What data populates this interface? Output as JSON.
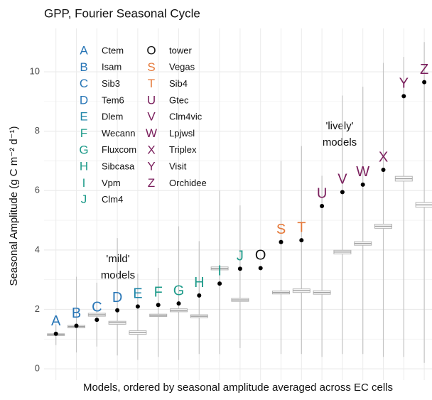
{
  "chart_data": {
    "type": "box",
    "title": "GPP, Fourier Seasonal Cycle",
    "x_label": "Models, ordered by seasonal amplitude averaged across EC cells",
    "y_label": "Seasonal Amplitude (g C m⁻² d⁻¹)",
    "ylim": [
      -0.38,
      11.46
    ],
    "yticks": [
      0,
      2,
      4,
      6,
      8,
      10
    ],
    "grid": true,
    "categories": [
      "A",
      "B",
      "C",
      "D",
      "E",
      "F",
      "G",
      "H",
      "I",
      "J",
      "O",
      "S",
      "T",
      "U",
      "V",
      "W",
      "X",
      "Y",
      "Z"
    ],
    "model_names": [
      "Ctem",
      "Isam",
      "Sib3",
      "Tem6",
      "Dlem",
      "Wecann",
      "Fluxcom",
      "Sibcasa",
      "Vpm",
      "Clm4",
      "tower",
      "Vegas",
      "Sib4",
      "Gtec",
      "Clm4vic",
      "Lpjwsl",
      "Triplex",
      "Visit",
      "Orchidee"
    ],
    "colors": [
      "#2775b6",
      "#2775b6",
      "#2775b6",
      "#2775b6",
      "#1f86a8",
      "#1e9b8a",
      "#1e9b8a",
      "#1e9b8a",
      "#1e9b8a",
      "#1e9b8a",
      "#111111",
      "#e5793a",
      "#e5793a",
      "#7a1e5c",
      "#7a1e5c",
      "#7a1e5c",
      "#7a1e5c",
      "#7a1e5c",
      "#7a1e5c"
    ],
    "values": [
      1.18,
      1.45,
      1.65,
      1.97,
      2.1,
      2.15,
      2.2,
      2.47,
      2.87,
      3.37,
      3.39,
      4.27,
      4.33,
      5.48,
      5.95,
      6.2,
      6.7,
      9.18,
      9.65
    ],
    "box": {
      "low": [
        0.8,
        0.55,
        0.75,
        0.45,
        0.3,
        0.4,
        0.3,
        0.5,
        0.5,
        0.7,
        null,
        0.5,
        0.5,
        0.4,
        0.5,
        0.5,
        0.4,
        0.4,
        0.2
      ],
      "q1": [
        1.12,
        1.38,
        1.77,
        1.5,
        1.16,
        1.76,
        1.92,
        1.72,
        3.33,
        2.27,
        null,
        2.52,
        2.57,
        2.51,
        3.87,
        4.16,
        4.73,
        6.32,
        5.44
      ],
      "median": [
        1.15,
        1.42,
        1.82,
        1.55,
        1.22,
        1.8,
        1.97,
        1.77,
        3.38,
        2.32,
        null,
        2.57,
        2.63,
        2.57,
        3.93,
        4.22,
        4.8,
        6.4,
        5.52
      ],
      "q3": [
        1.18,
        1.46,
        1.87,
        1.6,
        1.28,
        1.84,
        2.02,
        1.82,
        3.43,
        2.37,
        null,
        2.62,
        2.69,
        2.63,
        3.99,
        4.28,
        4.87,
        6.48,
        5.6
      ],
      "high": [
        1.5,
        3.1,
        2.9,
        4.4,
        3.2,
        3.4,
        4.8,
        4.3,
        6.0,
        5.5,
        null,
        7.0,
        7.5,
        6.5,
        9.2,
        9.5,
        10.3,
        10.5,
        11.0
      ]
    },
    "annotations": [
      [
        "'mild'",
        "models"
      ],
      [
        "'lively'",
        "models"
      ]
    ]
  }
}
